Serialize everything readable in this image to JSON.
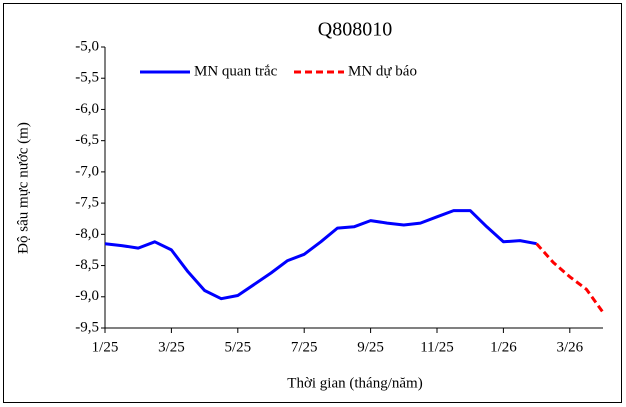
{
  "chart_data": {
    "type": "line",
    "title": "Q808010",
    "x_label": "Thời gian (tháng/năm)",
    "y_label": "Độ sâu mực nước (m)",
    "categories": [
      "1/25",
      null,
      null,
      null,
      "3/25",
      null,
      null,
      null,
      "5/25",
      null,
      null,
      null,
      "7/25",
      null,
      null,
      null,
      "9/25",
      null,
      null,
      null,
      "11/25",
      null,
      null,
      null,
      "1/26",
      null,
      null,
      null,
      "3/26",
      null,
      null
    ],
    "series": [
      {
        "name": "MN quan trắc",
        "color": "#0000ff",
        "dash": false,
        "values": [
          -8.15,
          -8.18,
          -8.22,
          -8.12,
          -8.25,
          -8.6,
          -8.9,
          -9.03,
          -8.98,
          -8.8,
          -8.62,
          -8.42,
          -8.32,
          -8.12,
          -7.9,
          -7.88,
          -7.78,
          -7.82,
          -7.85,
          -7.82,
          -7.72,
          -7.62,
          -7.62,
          -7.88,
          -8.12,
          -8.1,
          -8.15,
          null,
          null,
          null,
          null
        ]
      },
      {
        "name": "MN dự báo",
        "color": "#ff0000",
        "dash": true,
        "values": [
          null,
          null,
          null,
          null,
          null,
          null,
          null,
          null,
          null,
          null,
          null,
          null,
          null,
          null,
          null,
          null,
          null,
          null,
          null,
          null,
          null,
          null,
          null,
          null,
          null,
          null,
          -8.15,
          -8.45,
          -8.68,
          -8.88,
          -9.25
        ]
      }
    ],
    "ylim": [
      -9.5,
      -5.0
    ],
    "yticks": [
      {
        "value": -9.5,
        "label": "-9,5"
      },
      {
        "value": -9.0,
        "label": "-9,0"
      },
      {
        "value": -8.5,
        "label": "-8,5"
      },
      {
        "value": -8.0,
        "label": "-8,0"
      },
      {
        "value": -7.5,
        "label": "-7,5"
      },
      {
        "value": -7.0,
        "label": "-7,0"
      },
      {
        "value": -6.5,
        "label": "-6,5"
      },
      {
        "value": -6.0,
        "label": "-6,0"
      },
      {
        "value": -5.5,
        "label": "-5,5"
      },
      {
        "value": -5.0,
        "label": "-5,0"
      }
    ],
    "grid": false,
    "legend": "top"
  }
}
